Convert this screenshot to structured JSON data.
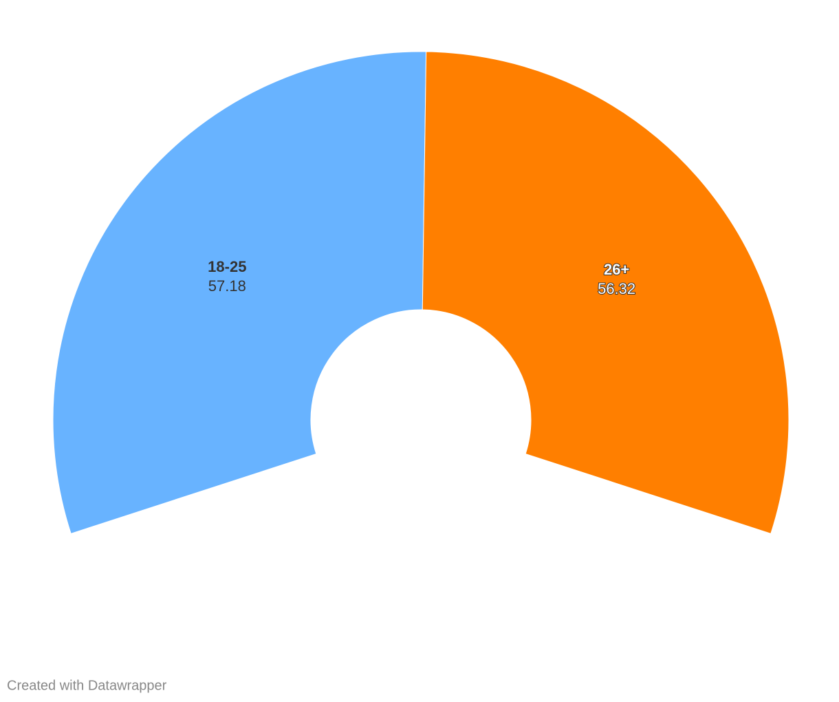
{
  "chart_data": {
    "type": "pie",
    "categories": [
      "18-25",
      "26+"
    ],
    "values": [
      57.18,
      56.32
    ],
    "colors": [
      "#68b3ff",
      "#ff7f00"
    ],
    "credit": "Created with Datawrapper"
  }
}
